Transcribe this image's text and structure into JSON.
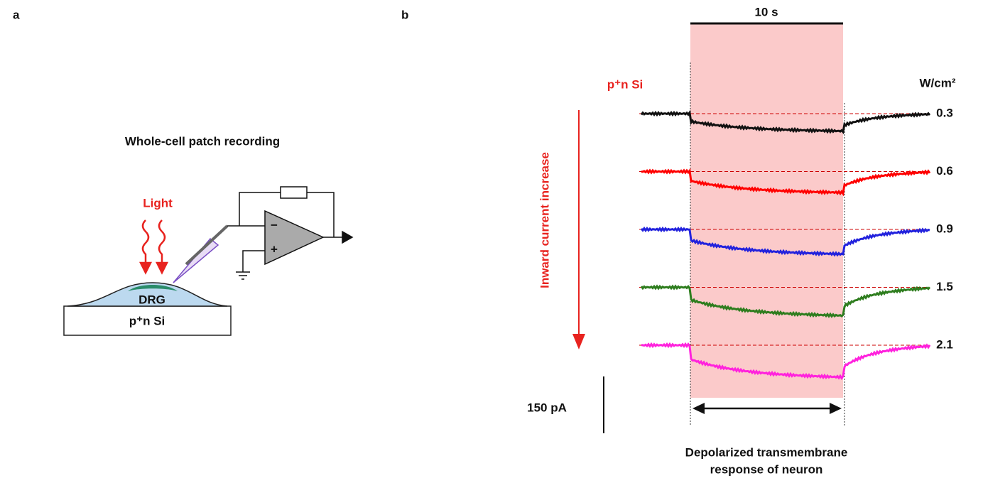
{
  "panel_a": {
    "label": "a",
    "title": "Whole-cell patch recording",
    "light": "Light",
    "cell": "DRG",
    "substrate": "p⁺n Si",
    "minus": "−",
    "plus": "+"
  },
  "panel_b": {
    "label": "b",
    "duration": "10 s",
    "material": "p⁺n Si",
    "unit": "W/cm²",
    "arrow_label": "Inward current increase",
    "scale_bar": "150 pA",
    "caption": [
      "Depolarized transmembrane",
      "response of neuron"
    ],
    "traces": [
      {
        "intensity": "0.3",
        "color": "#111111"
      },
      {
        "intensity": "0.6",
        "color": "#ff0000"
      },
      {
        "intensity": "0.9",
        "color": "#2222dd"
      },
      {
        "intensity": "1.5",
        "color": "#2e7d1e"
      },
      {
        "intensity": "2.1",
        "color": "#ff22dd"
      }
    ]
  }
}
